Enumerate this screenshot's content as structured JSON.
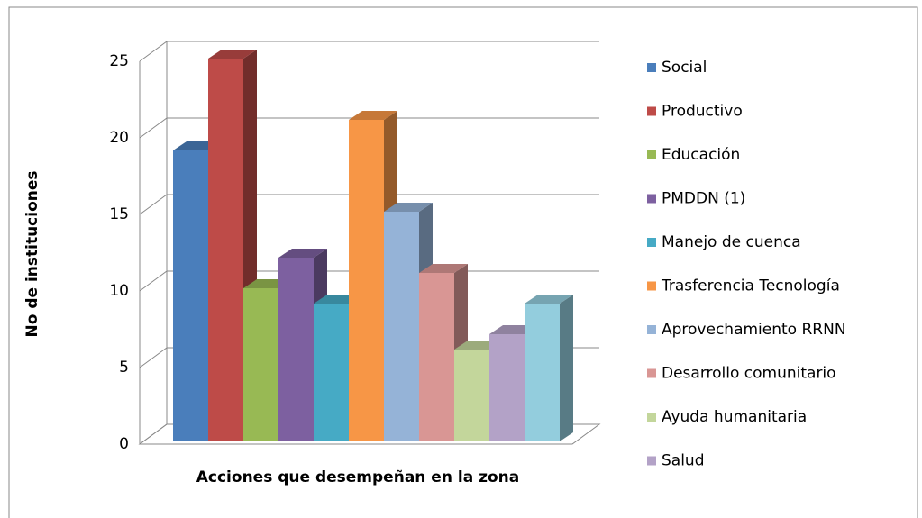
{
  "chart_data": {
    "type": "bar",
    "y_label": "No de instituciones",
    "x_label": "Acciones que desempeñan en la zona",
    "ylim": [
      0,
      25
    ],
    "yticks": [
      0,
      5,
      10,
      15,
      20,
      25
    ],
    "grid": true,
    "legend": "right",
    "series": [
      {
        "name": "Social",
        "color": "#4a7ebb",
        "values": [
          19
        ]
      },
      {
        "name": "Productivo",
        "color": "#be4b48",
        "values": [
          25
        ]
      },
      {
        "name": "Educación",
        "color": "#98b954",
        "values": [
          10
        ]
      },
      {
        "name": "PMDDN (1)",
        "color": "#7d60a0",
        "values": [
          12
        ]
      },
      {
        "name": "Manejo de cuenca",
        "color": "#46aac5",
        "values": [
          9
        ]
      },
      {
        "name": "Trasferencia  Tecnología",
        "color": "#f79646",
        "values": [
          21
        ]
      },
      {
        "name": "Aprovechamiento RRNN",
        "color": "#95b3d7",
        "values": [
          15
        ]
      },
      {
        "name": "Desarrollo comunitario",
        "color": "#d99694",
        "values": [
          11
        ]
      },
      {
        "name": "Ayuda humanitaria",
        "color": "#c3d69b",
        "values": [
          6
        ]
      },
      {
        "name": "Salud",
        "color": "#b3a2c7",
        "values": [
          7
        ]
      },
      {
        "name": null,
        "color": "#93cddd",
        "values": [
          9
        ]
      }
    ]
  }
}
